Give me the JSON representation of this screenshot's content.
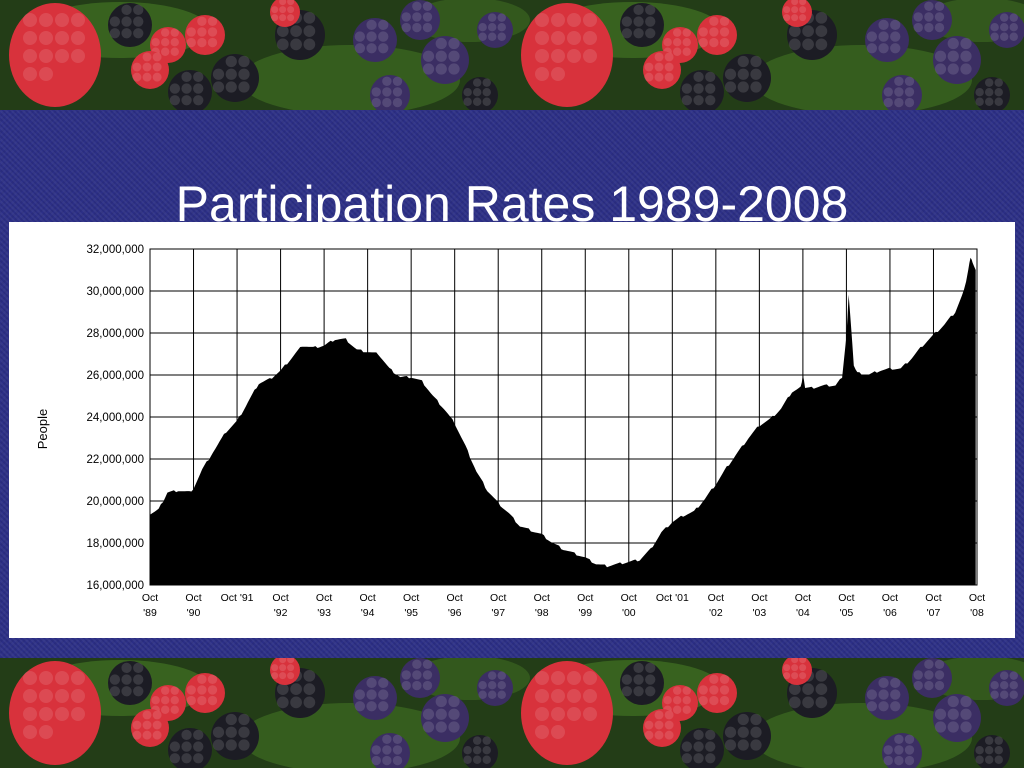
{
  "slide": {
    "title": "Participation Rates 1989-2008"
  },
  "decor": {
    "band_icon": "berries-photo",
    "colors": {
      "background": "#2c2f86",
      "raspberry": "#d8323c",
      "blackberry": "#1c1c24",
      "purple_berry": "#3b2e63",
      "leaf": "#3d6b22"
    }
  },
  "chart_data": {
    "type": "area",
    "title": "",
    "xlabel": "",
    "ylabel": "People",
    "ylim": [
      16000000,
      32000000
    ],
    "grid": true,
    "fill_color": "#000000",
    "y_ticks": [
      {
        "value": 16000000,
        "label": "16,000,000"
      },
      {
        "value": 18000000,
        "label": "18,000,000"
      },
      {
        "value": 20000000,
        "label": "20,000,000"
      },
      {
        "value": 22000000,
        "label": "22,000,000"
      },
      {
        "value": 24000000,
        "label": "24,000,000"
      },
      {
        "value": 26000000,
        "label": "26,000,000"
      },
      {
        "value": 28000000,
        "label": "28,000,000"
      },
      {
        "value": 30000000,
        "label": "30,000,000"
      },
      {
        "value": 32000000,
        "label": "32,000,000"
      }
    ],
    "x_ticks": [
      {
        "value": 1989.75,
        "line1": "Oct",
        "line2": "'89"
      },
      {
        "value": 1990.75,
        "line1": "Oct",
        "line2": "'90"
      },
      {
        "value": 1991.75,
        "line1": "Oct '91",
        "line2": ""
      },
      {
        "value": 1992.75,
        "line1": "Oct",
        "line2": "'92"
      },
      {
        "value": 1993.75,
        "line1": "Oct",
        "line2": "'93"
      },
      {
        "value": 1994.75,
        "line1": "Oct",
        "line2": "'94"
      },
      {
        "value": 1995.75,
        "line1": "Oct",
        "line2": "'95"
      },
      {
        "value": 1996.75,
        "line1": "Oct",
        "line2": "'96"
      },
      {
        "value": 1997.75,
        "line1": "Oct",
        "line2": "'97"
      },
      {
        "value": 1998.75,
        "line1": "Oct",
        "line2": "'98"
      },
      {
        "value": 1999.75,
        "line1": "Oct",
        "line2": "'99"
      },
      {
        "value": 2000.75,
        "line1": "Oct",
        "line2": "'00"
      },
      {
        "value": 2001.75,
        "line1": "Oct '01",
        "line2": ""
      },
      {
        "value": 2002.75,
        "line1": "Oct",
        "line2": "'02"
      },
      {
        "value": 2003.75,
        "line1": "Oct",
        "line2": "'03"
      },
      {
        "value": 2004.75,
        "line1": "Oct",
        "line2": "'04"
      },
      {
        "value": 2005.75,
        "line1": "Oct",
        "line2": "'05"
      },
      {
        "value": 2006.75,
        "line1": "Oct",
        "line2": "'06"
      },
      {
        "value": 2007.75,
        "line1": "Oct",
        "line2": "'07"
      },
      {
        "value": 2008.75,
        "line1": "Oct",
        "line2": "'08"
      }
    ],
    "series": [
      {
        "x": [
          1989.75,
          1989.95,
          1990.15,
          1990.4,
          1990.7,
          1990.95,
          1991.25,
          1991.5,
          1991.75,
          1992.0,
          1992.25,
          1992.5,
          1992.75,
          1993.0,
          1993.25,
          1993.5,
          1993.75,
          1994.0,
          1994.25,
          1994.5,
          1994.75,
          1995.0,
          1995.25,
          1995.5,
          1995.75,
          1996.0,
          1996.25,
          1996.5,
          1996.75,
          1997.0,
          1997.25,
          1997.5,
          1997.75,
          1998.0,
          1998.25,
          1998.5,
          1998.75,
          1999.0,
          1999.25,
          1999.5,
          1999.75,
          2000.0,
          2000.25,
          2000.5,
          2000.75,
          2001.0,
          2001.25,
          2001.5,
          2001.75,
          2002.0,
          2002.25,
          2002.5,
          2002.75,
          2003.0,
          2003.25,
          2003.5,
          2003.75,
          2004.0,
          2004.25,
          2004.5,
          2004.7,
          2004.75,
          2004.8,
          2005.0,
          2005.25,
          2005.5,
          2005.65,
          2005.75,
          2005.8,
          2005.85,
          2005.92,
          2006.0,
          2006.25,
          2006.5,
          2006.75,
          2007.0,
          2007.25,
          2007.5,
          2007.75,
          2008.0,
          2008.25,
          2008.45,
          2008.55,
          2008.6,
          2008.65,
          2008.72
        ],
        "y": [
          19400000,
          19600000,
          20400000,
          20500000,
          20400000,
          21500000,
          22500000,
          23300000,
          23800000,
          24700000,
          25600000,
          25800000,
          26200000,
          26800000,
          27400000,
          27300000,
          27400000,
          27700000,
          27700000,
          27200000,
          27100000,
          27000000,
          26300000,
          25900000,
          25900000,
          25700000,
          25000000,
          24400000,
          23700000,
          22600000,
          21400000,
          20500000,
          19900000,
          19400000,
          18800000,
          18600000,
          18400000,
          18000000,
          17700000,
          17500000,
          17300000,
          17000000,
          16900000,
          17000000,
          17100000,
          17200000,
          17700000,
          18500000,
          19000000,
          19300000,
          19500000,
          20100000,
          20800000,
          21600000,
          22300000,
          23000000,
          23600000,
          23900000,
          24400000,
          25200000,
          25400000,
          26000000,
          25400000,
          25400000,
          25500000,
          25500000,
          25900000,
          27800000,
          29800000,
          28500000,
          26500000,
          26100000,
          26000000,
          26200000,
          26300000,
          26300000,
          26800000,
          27400000,
          27900000,
          28400000,
          29000000,
          30000000,
          31000000,
          31600000,
          31400000,
          31000000
        ]
      }
    ]
  }
}
